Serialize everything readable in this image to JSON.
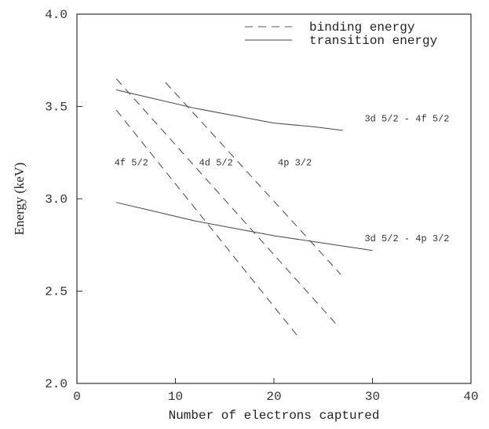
{
  "chart_data": {
    "type": "line",
    "title": "",
    "xlabel": "Number of electrons captured",
    "ylabel": "Energy (keV)",
    "xlim": [
      0,
      40
    ],
    "ylim": [
      2.0,
      4.0
    ],
    "x_ticks": [
      "0",
      "10",
      "20",
      "30",
      "40"
    ],
    "y_ticks": [
      "2.0",
      "2.5",
      "3.0",
      "3.5",
      "4.0"
    ],
    "grid": false,
    "legend": {
      "placement": "top-right",
      "entries": [
        {
          "label": "binding energy",
          "style": "dashed"
        },
        {
          "label": "transition energy",
          "style": "solid"
        }
      ]
    },
    "series": [
      {
        "group": "binding energy",
        "style": "dashed",
        "x": [
          4,
          22.5
        ],
        "y": [
          3.48,
          2.25
        ]
      },
      {
        "group": "binding energy",
        "style": "dashed",
        "x": [
          4,
          26.5
        ],
        "y": [
          3.65,
          2.31
        ]
      },
      {
        "group": "binding energy",
        "style": "dashed",
        "x": [
          9,
          26.8
        ],
        "y": [
          3.63,
          2.59
        ]
      },
      {
        "group": "transition energy",
        "style": "solid",
        "x": [
          4,
          8,
          12,
          16,
          20,
          24,
          27
        ],
        "y": [
          3.59,
          3.54,
          3.49,
          3.45,
          3.41,
          3.39,
          3.37
        ]
      },
      {
        "group": "transition energy",
        "style": "solid",
        "x": [
          4,
          8,
          12,
          16,
          20,
          25,
          30
        ],
        "y": [
          2.98,
          2.93,
          2.88,
          2.84,
          2.8,
          2.76,
          2.72
        ]
      }
    ],
    "annotations": [
      {
        "text": "4f 5/2",
        "x": 3.8,
        "y": 3.18
      },
      {
        "text": "4d 5/2",
        "x": 12.4,
        "y": 3.18
      },
      {
        "text": "4p 3/2",
        "x": 20.4,
        "y": 3.18
      },
      {
        "text": "3d 5/2 - 4f 5/2",
        "x": 29.2,
        "y": 3.42
      },
      {
        "text": "3d 5/2 - 4p 3/2",
        "x": 29.2,
        "y": 2.77
      }
    ]
  }
}
